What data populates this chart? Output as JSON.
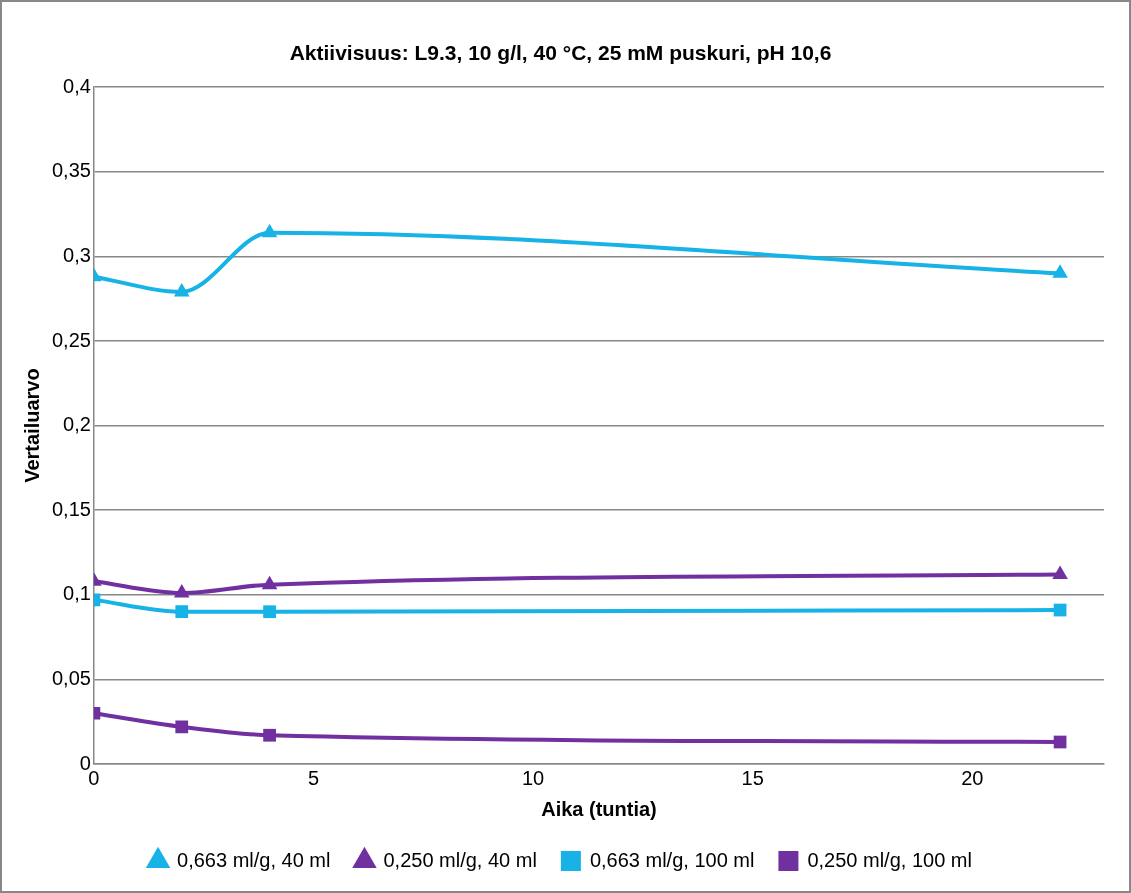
{
  "chart_data": {
    "type": "line",
    "title": "Aktiivisuus: L9.3, 10 g/l, 40 °C, 25 mM puskuri, pH 10,6",
    "xlabel": "Aika (tuntia)",
    "ylabel": "Vertailuarvo",
    "x": [
      0,
      2,
      4,
      22
    ],
    "series": [
      {
        "name": "0,663 ml/g, 40 ml",
        "color": "#17b2e6",
        "marker": "triangle",
        "values": [
          0.288,
          0.279,
          0.314,
          0.29
        ]
      },
      {
        "name": "0,250 ml/g, 40 ml",
        "color": "#7030a0",
        "marker": "triangle",
        "values": [
          0.108,
          0.101,
          0.106,
          0.112
        ]
      },
      {
        "name": "0,663 ml/g, 100 ml",
        "color": "#17b2e6",
        "marker": "square",
        "values": [
          0.097,
          0.09,
          0.09,
          0.091
        ]
      },
      {
        "name": "0,250 ml/g, 100 ml",
        "color": "#7030a0",
        "marker": "square",
        "values": [
          0.03,
          0.022,
          0.017,
          0.013
        ]
      }
    ],
    "xlim": [
      0,
      23
    ],
    "xticks": [
      0,
      5,
      10,
      15,
      20
    ],
    "ylim": [
      0,
      0.4
    ],
    "yticks": [
      0,
      {
        "value": 0.05,
        "label": "0,05"
      },
      {
        "value": 0.1,
        "label": "0,1"
      },
      {
        "value": 0.15,
        "label": "0,15"
      },
      {
        "value": 0.2,
        "label": "0,2"
      },
      {
        "value": 0.25,
        "label": "0,25"
      },
      {
        "value": 0.3,
        "label": "0,3"
      },
      {
        "value": 0.35,
        "label": "0,35"
      },
      {
        "value": 0.4,
        "label": "0,4"
      }
    ],
    "grid": "y",
    "legend": "bottom"
  }
}
